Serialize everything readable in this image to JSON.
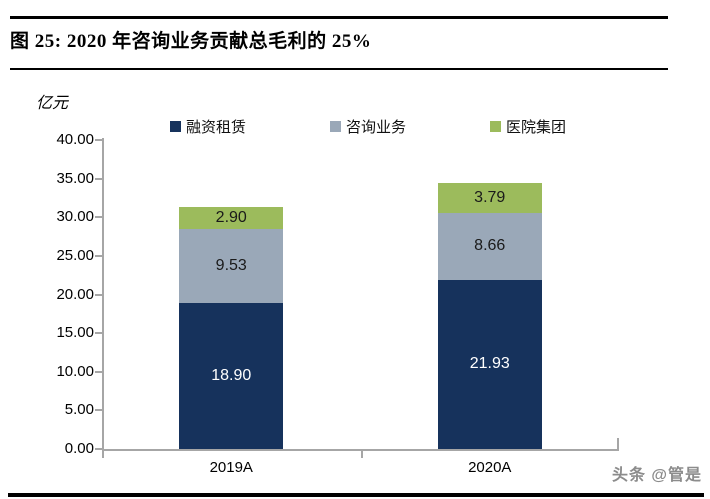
{
  "figure": {
    "title": "图 25: 2020 年咨询业务贡献总毛利的 25%"
  },
  "chart_data": {
    "type": "bar",
    "stacked": true,
    "title": "图 25: 2020 年咨询业务贡献总毛利的 25%",
    "unit_label": "亿元",
    "categories": [
      "2019A",
      "2020A"
    ],
    "series": [
      {
        "name": "融资租赁",
        "color": "#16325c",
        "text_color": "#ffffff",
        "values": [
          18.9,
          21.93
        ],
        "labels": [
          "18.90",
          "21.93"
        ]
      },
      {
        "name": "咨询业务",
        "color": "#9aa8b8",
        "text_color": "#1a1a1a",
        "values": [
          9.53,
          8.66
        ],
        "labels": [
          "9.53",
          "8.66"
        ]
      },
      {
        "name": "医院集团",
        "color": "#9cbb5c",
        "text_color": "#1a1a1a",
        "values": [
          2.9,
          3.79
        ],
        "labels": [
          "2.90",
          "3.79"
        ]
      }
    ],
    "totals": [
      31.33,
      34.38
    ],
    "ylim": [
      0,
      40
    ],
    "ytick_step": 5,
    "ytick_labels": [
      "0.00",
      "5.00",
      "10.00",
      "15.00",
      "20.00",
      "25.00",
      "30.00",
      "35.00",
      "40.00"
    ],
    "legend_position": "top",
    "grid": false,
    "axis_color": "#a6a6a6"
  },
  "watermark": {
    "text": "头条 @管是"
  }
}
